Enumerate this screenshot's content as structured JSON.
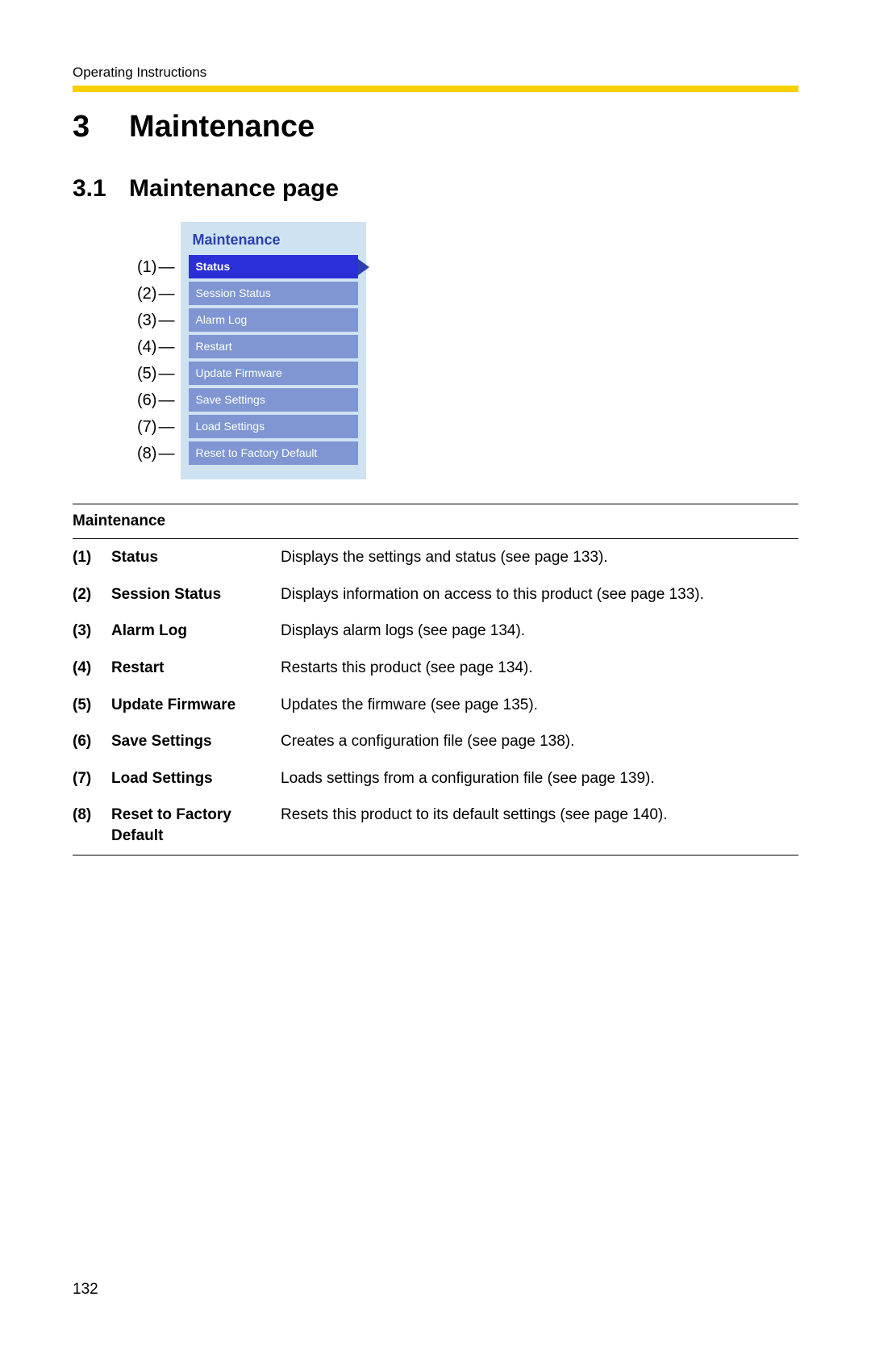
{
  "header": {
    "label": "Operating Instructions"
  },
  "chapter": {
    "number": "3",
    "title": "Maintenance"
  },
  "section": {
    "number": "3.1",
    "title": "Maintenance page"
  },
  "menu": {
    "title": "Maintenance",
    "background_color": "#cfe2f2",
    "title_color": "#2a3fb0",
    "item_bg": "#7f96d2",
    "active_bg": "#2a2fd8",
    "arrow_color": "#2a3fb0",
    "text_color": "#ffffff",
    "items": [
      {
        "label": "Status",
        "active": true,
        "callout": "(1)"
      },
      {
        "label": "Session Status",
        "active": false,
        "callout": "(2)"
      },
      {
        "label": "Alarm Log",
        "active": false,
        "callout": "(3)"
      },
      {
        "label": "Restart",
        "active": false,
        "callout": "(4)"
      },
      {
        "label": "Update Firmware",
        "active": false,
        "callout": "(5)"
      },
      {
        "label": "Save Settings",
        "active": false,
        "callout": "(6)"
      },
      {
        "label": "Load Settings",
        "active": false,
        "callout": "(7)"
      },
      {
        "label": "Reset to Factory Default",
        "active": false,
        "callout": "(8)"
      }
    ]
  },
  "table": {
    "heading": "Maintenance",
    "rows": [
      {
        "num": "(1)",
        "name": "Status",
        "desc": "Displays the settings and status (see page 133)."
      },
      {
        "num": "(2)",
        "name": "Session Status",
        "desc": "Displays information on access to this product (see page 133)."
      },
      {
        "num": "(3)",
        "name": "Alarm Log",
        "desc": "Displays alarm logs (see page 134)."
      },
      {
        "num": "(4)",
        "name": "Restart",
        "desc": "Restarts this product (see page 134)."
      },
      {
        "num": "(5)",
        "name": "Update Firmware",
        "desc": "Updates the firmware (see page 135)."
      },
      {
        "num": "(6)",
        "name": "Save Settings",
        "desc": "Creates a configuration file (see page 138)."
      },
      {
        "num": "(7)",
        "name": "Load Settings",
        "desc": "Loads settings from a configuration file (see page 139)."
      },
      {
        "num": "(8)",
        "name": "Reset to Factory Default",
        "desc": "Resets this product to its default settings (see page 140)."
      }
    ]
  },
  "page_number": "132",
  "colors": {
    "rule": "#f7d100",
    "border": "#000000"
  }
}
